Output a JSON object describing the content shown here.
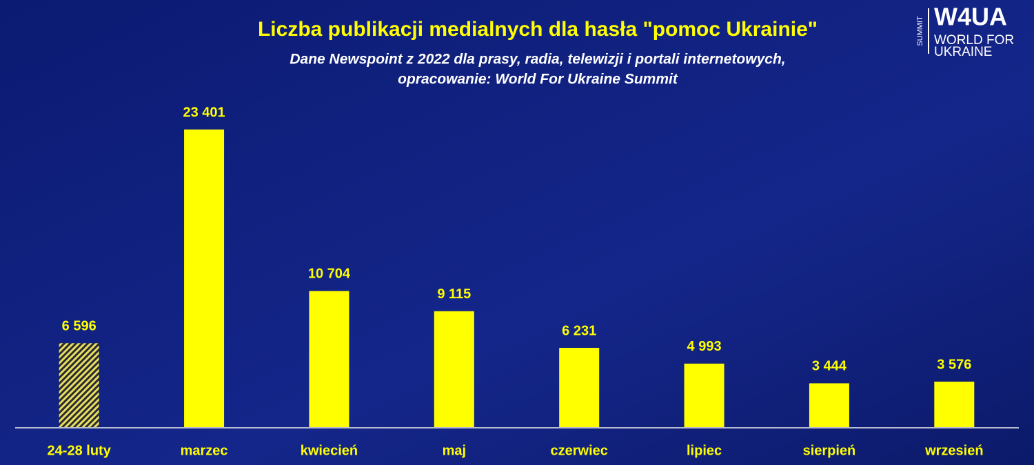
{
  "chart_data": {
    "type": "bar",
    "title": "Liczba publikacji medialnych dla hasła \"pomoc Ukrainie\"",
    "subtitle": [
      "Dane Newspoint z 2022 dla prasy, radia, telewizji i portali internetowych,",
      "opracowanie: World For Ukraine Summit"
    ],
    "categories": [
      "24-28 luty",
      "marzec",
      "kwiecień",
      "maj",
      "czerwiec",
      "lipiec",
      "sierpień",
      "wrzesień"
    ],
    "values": [
      6596,
      23401,
      10704,
      9115,
      6231,
      4993,
      3444,
      3576
    ],
    "value_labels": [
      "6 596",
      "23 401",
      "10 704",
      "9 115",
      "6 231",
      "4 993",
      "3 444",
      "3 576"
    ],
    "bar_styles": [
      "hatched",
      "solid",
      "solid",
      "solid",
      "solid",
      "solid",
      "solid",
      "solid"
    ],
    "color": "#ffff00"
  },
  "logo": {
    "mark": "W4UA",
    "line1": "WORLD FOR",
    "line2": "UKRAINE",
    "side": "SUMMIT"
  }
}
